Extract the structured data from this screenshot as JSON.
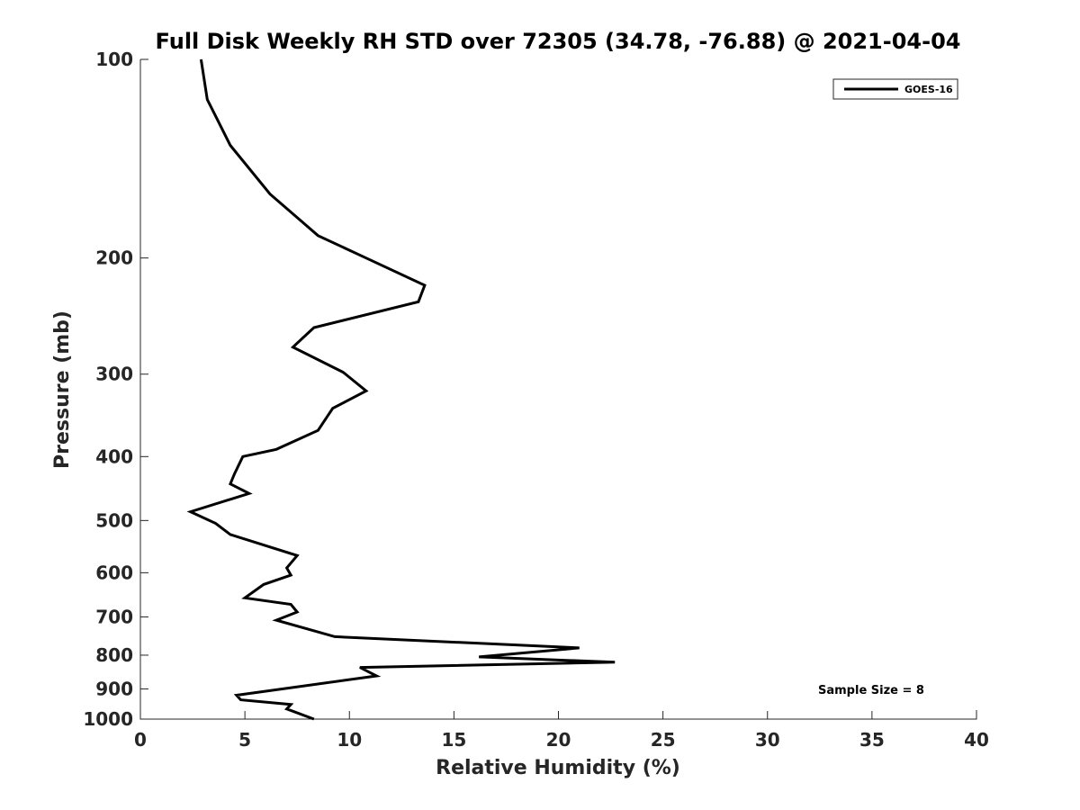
{
  "chart_data": {
    "type": "line",
    "title": "Full Disk Weekly RH STD over 72305 (34.78, -76.88) @ 2021-04-04",
    "xlabel": "Relative Humidity (%)",
    "ylabel": "Pressure (mb)",
    "xlim": [
      0,
      40
    ],
    "ylim": [
      1000,
      100
    ],
    "y_scale": "log",
    "y_reversed": true,
    "x_ticks": [
      0,
      5,
      10,
      15,
      20,
      25,
      30,
      35,
      40
    ],
    "y_ticks": [
      100,
      200,
      300,
      400,
      500,
      600,
      700,
      800,
      900,
      1000
    ],
    "grid": false,
    "legend_position": "top-right",
    "series": [
      {
        "name": "GOES-16",
        "color": "#000000",
        "x": [
          2.9,
          3.2,
          4.3,
          6.2,
          8.5,
          10.8,
          13.6,
          13.3,
          8.3,
          7.3,
          9.7,
          10.8,
          9.2,
          8.5,
          6.5,
          4.9,
          4.5,
          4.3,
          5.2,
          2.4,
          3.6,
          4.3,
          7.5,
          7.0,
          7.2,
          5.9,
          5.0,
          7.2,
          7.5,
          6.5,
          9.3,
          21.0,
          16.2,
          22.7,
          10.5,
          11.3,
          4.6,
          4.8,
          7.2,
          7.0,
          8.3
        ],
        "y": [
          100,
          115,
          135,
          160,
          185,
          200,
          220,
          233,
          255,
          273,
          298,
          318,
          338,
          365,
          390,
          400,
          425,
          440,
          455,
          485,
          505,
          525,
          565,
          590,
          605,
          625,
          655,
          670,
          688,
          708,
          750,
          780,
          805,
          820,
          835,
          860,
          920,
          935,
          950,
          965,
          1000
        ]
      }
    ],
    "annotations": [
      "Sample Size = 8"
    ]
  }
}
